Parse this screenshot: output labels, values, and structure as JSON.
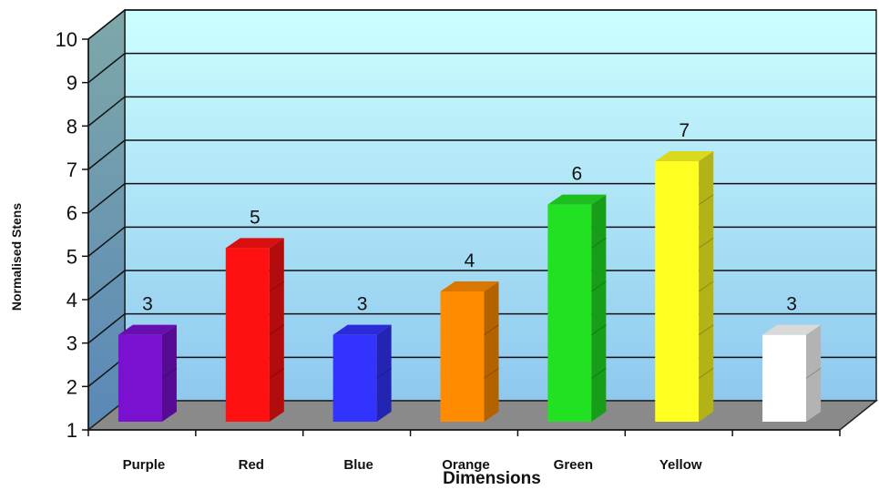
{
  "chart_data": {
    "type": "bar",
    "categories": [
      "Purple",
      "Red",
      "Blue",
      "Orange",
      "Green",
      "Yellow",
      ""
    ],
    "values": [
      3,
      5,
      3,
      4,
      6,
      7,
      3
    ],
    "data_labels": [
      "3",
      "5",
      "3",
      "4",
      "6",
      "7",
      "3"
    ],
    "colors": [
      "#7a10d0",
      "#ff1111",
      "#3333ff",
      "#ff8c00",
      "#22e022",
      "#ffff22",
      "#ffffff"
    ],
    "xlabel": "Dimensions",
    "ylabel": "Normalised Stens",
    "ylim": [
      1,
      10
    ],
    "yticks": [
      "1",
      "2",
      "3",
      "4",
      "5",
      "6",
      "7",
      "8",
      "9",
      "10"
    ],
    "grid": true,
    "three_d": true
  }
}
